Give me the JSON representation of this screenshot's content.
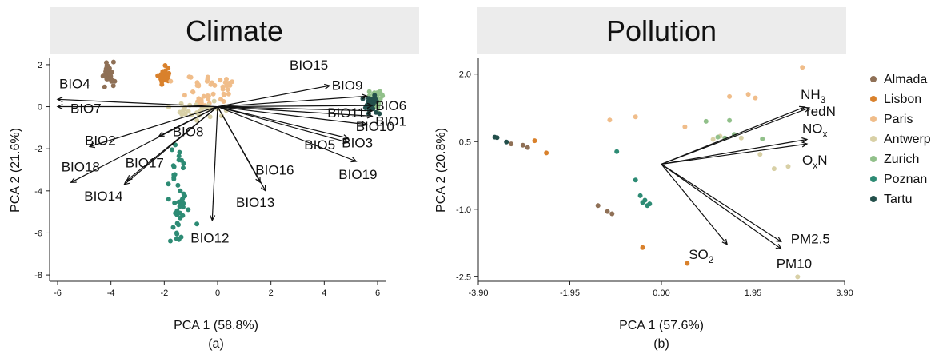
{
  "chart_data": [
    {
      "type": "scatter",
      "title": "Climate",
      "xlabel": "PCA 1 (58.8%)",
      "ylabel": "PCA 2 (21.6%)",
      "caption": "(a)",
      "xlim": [
        -6.3,
        6.3
      ],
      "ylim": [
        -8.3,
        2.3
      ],
      "xticks": [
        -6,
        -4,
        -2,
        0,
        2,
        4,
        6
      ],
      "yticks": [
        2,
        0,
        -2,
        -4,
        -6,
        -8
      ],
      "colors": [
        "#8f7056",
        "#d9812c",
        "#f0bd8a",
        "#d8d0a6",
        "#91c08a",
        "#2d8b74",
        "#234f4b"
      ],
      "series": [
        {
          "cluster": {
            "x": -4.1,
            "y": 1.55,
            "sx": 0.12,
            "sy": 0.28,
            "n": 30
          }
        },
        {
          "cluster": {
            "x": -2.0,
            "y": 1.45,
            "sx": 0.12,
            "sy": 0.22,
            "n": 28
          }
        },
        {
          "cluster": {
            "x": -0.2,
            "y": 0.9,
            "sx": 0.55,
            "sy": 0.45,
            "n": 45
          }
        },
        {
          "cluster": {
            "x": -0.6,
            "y": -0.1,
            "sx": 0.45,
            "sy": 0.3,
            "n": 30
          }
        },
        {
          "cluster": {
            "x": 5.9,
            "y": 0.3,
            "sx": 0.12,
            "sy": 0.25,
            "n": 40
          }
        },
        {
          "cluster": {
            "x": -1.5,
            "y": -4.5,
            "sx": 0.18,
            "sy": 1.2,
            "n": 45
          }
        },
        {
          "cluster": {
            "x": 5.75,
            "y": 0.1,
            "sx": 0.12,
            "sy": 0.2,
            "n": 25
          }
        }
      ],
      "vectors": [
        {
          "label": "BIO4",
          "x": -6.0,
          "y": 0.35
        },
        {
          "label": "BIO7",
          "x": -6.0,
          "y": 0.0
        },
        {
          "label": "BIO2",
          "x": -4.8,
          "y": -1.9
        },
        {
          "label": "BIO8",
          "x": -2.2,
          "y": -1.4
        },
        {
          "label": "BIO18",
          "x": -5.5,
          "y": -3.6
        },
        {
          "label": "BIO17",
          "x": -3.4,
          "y": -3.5
        },
        {
          "label": "BIO14",
          "x": -3.5,
          "y": -3.7
        },
        {
          "label": "BIO12",
          "x": -0.2,
          "y": -5.4
        },
        {
          "label": "BIO13",
          "x": 1.8,
          "y": -4.0
        },
        {
          "label": "BIO16",
          "x": 1.6,
          "y": -3.6
        },
        {
          "label": "BIO15",
          "x": 4.2,
          "y": 1.0
        },
        {
          "label": "BIO9",
          "x": 5.6,
          "y": 0.5
        },
        {
          "label": "BIO11",
          "x": 5.8,
          "y": -0.2
        },
        {
          "label": "BIO6",
          "x": 5.8,
          "y": 0.05
        },
        {
          "label": "BIO1",
          "x": 5.8,
          "y": -0.45
        },
        {
          "label": "BIO10",
          "x": 5.6,
          "y": -0.85
        },
        {
          "label": "BIO3",
          "x": 4.9,
          "y": -1.7
        },
        {
          "label": "BIO5",
          "x": 4.9,
          "y": -1.5
        },
        {
          "label": "BIO19",
          "x": 5.2,
          "y": -2.6
        }
      ]
    },
    {
      "type": "scatter",
      "title": "Pollution",
      "xlabel": "PCA 1 (57.6%)",
      "ylabel": "PCA 2 (20.8%)",
      "caption": "(b)",
      "xlim": [
        -3.9,
        3.9
      ],
      "ylim": [
        -2.6,
        2.35
      ],
      "xticks": [
        -3.9,
        -1.95,
        0,
        1.95,
        3.9
      ],
      "xtick_labels": [
        "-3.90",
        "-1.95",
        "0.00",
        "1.95",
        "3.90"
      ],
      "yticks": [
        2.0,
        0.5,
        -1.0,
        -2.5
      ],
      "ytick_labels": [
        "2.0",
        "0.5",
        "-1.0",
        "-2.5"
      ],
      "series": [
        {
          "name": "Almada",
          "color": "#8f7056",
          "x": [
            -3.2,
            -2.95,
            -2.85,
            -1.35,
            -1.15,
            -1.05
          ],
          "y": [
            0.45,
            0.42,
            0.37,
            -0.92,
            -1.05,
            -1.1
          ]
        },
        {
          "name": "Lisbon",
          "color": "#d9812c",
          "x": [
            -2.7,
            -2.45,
            -0.4,
            0.55
          ],
          "y": [
            0.52,
            0.25,
            -1.85,
            -2.2
          ]
        },
        {
          "name": "Paris",
          "color": "#f0bd8a",
          "x": [
            -1.1,
            -0.55,
            0.5,
            1.45,
            1.85,
            2.0,
            3.0
          ],
          "y": [
            0.98,
            1.05,
            0.83,
            1.5,
            1.55,
            1.47,
            2.15
          ]
        },
        {
          "name": "Antwerp",
          "color": "#d8d0a6",
          "x": [
            1.1,
            1.25,
            1.7,
            2.1,
            2.4,
            2.7,
            2.9
          ],
          "y": [
            0.55,
            0.62,
            0.58,
            0.22,
            -0.1,
            -0.05,
            -2.5
          ]
        },
        {
          "name": "Zurich",
          "color": "#91c08a",
          "x": [
            0.95,
            1.35,
            1.45,
            1.55,
            2.15,
            1.2
          ],
          "y": [
            0.95,
            0.58,
            0.97,
            0.66,
            0.56,
            0.6
          ]
        },
        {
          "name": "Poznan",
          "color": "#2d8b74",
          "x": [
            -0.95,
            -0.55,
            -0.45,
            -0.4,
            -0.35,
            -0.3,
            -0.25
          ],
          "y": [
            0.28,
            -0.35,
            -0.7,
            -0.85,
            -0.8,
            -0.92,
            -0.88
          ]
        },
        {
          "name": "Tartu",
          "color": "#234f4b",
          "x": [
            -3.55,
            -3.5,
            -3.3
          ],
          "y": [
            0.6,
            0.59,
            0.49
          ]
        }
      ],
      "vectors": [
        {
          "label": "NH",
          "sub": "3",
          "post": "",
          "x": 3.05,
          "y": 1.27
        },
        {
          "label": "redN",
          "sub": "",
          "post": "",
          "x": 3.15,
          "y": 1.25
        },
        {
          "label": "NO",
          "sub": "x",
          "post": "",
          "x": 3.1,
          "y": 0.55
        },
        {
          "label": "O",
          "sub": "x",
          "post": "N",
          "x": 3.1,
          "y": 0.45
        },
        {
          "label": "PM2.5",
          "sub": "",
          "post": "",
          "x": 2.55,
          "y": -1.72
        },
        {
          "label": "PM10",
          "sub": "",
          "post": "",
          "x": 2.55,
          "y": -1.88
        },
        {
          "label": "SO",
          "sub": "2",
          "post": "",
          "x": 1.4,
          "y": -1.78
        }
      ]
    }
  ]
}
